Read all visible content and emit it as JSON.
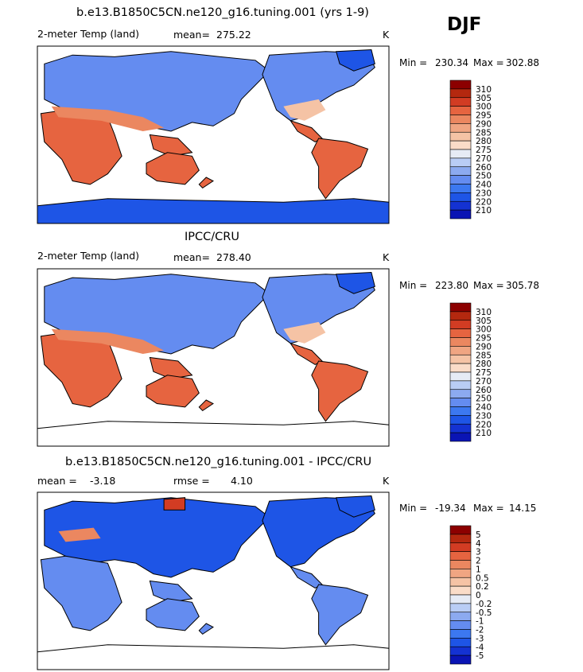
{
  "season": "DJF",
  "colors": {
    "abs": [
      "#00008c",
      "#0a14b4",
      "#1432d2",
      "#1e55e6",
      "#3c78f0",
      "#648cf0",
      "#8caaf0",
      "#b9cdf5",
      "#e6ebf5",
      "#fadcc8",
      "#f5c3a5",
      "#f0a582",
      "#eb8760",
      "#e66440",
      "#d23c23",
      "#b4280f",
      "#8c0000"
    ],
    "diff": [
      "#00008c",
      "#0a14b4",
      "#1432d2",
      "#1e55e6",
      "#3c78f0",
      "#648cf0",
      "#8caaf0",
      "#b9cdf5",
      "#e6ebf5",
      "#fadcc8",
      "#f5c3a5",
      "#f0a582",
      "#eb8760",
      "#e66440",
      "#d23c23",
      "#b4280f",
      "#8c0000"
    ]
  },
  "panels": [
    {
      "title": "b.e13.B1850C5CN.ne120_g16.tuning.001 (yrs 1-9)",
      "left_label": "2-meter Temp (land)",
      "stat_label": "mean=",
      "stat_value": "275.22",
      "units": "K",
      "min_label": "Min =",
      "min_value": "230.34",
      "max_label": "Max =",
      "max_value": "302.88",
      "levels": [
        "310",
        "305",
        "300",
        "295",
        "290",
        "285",
        "280",
        "275",
        "270",
        "260",
        "250",
        "240",
        "230",
        "220",
        "210"
      ]
    },
    {
      "title": "IPCC/CRU",
      "left_label": "2-meter Temp (land)",
      "stat_label": "mean=",
      "stat_value": "278.40",
      "units": "K",
      "min_label": "Min =",
      "min_value": "223.80",
      "max_label": "Max =",
      "max_value": "305.78",
      "levels": [
        "310",
        "305",
        "300",
        "295",
        "290",
        "285",
        "280",
        "275",
        "270",
        "260",
        "250",
        "240",
        "230",
        "220",
        "210"
      ]
    },
    {
      "title": "b.e13.B1850C5CN.ne120_g16.tuning.001 - IPCC/CRU",
      "left_label": "mean =",
      "left_value": "-3.18",
      "stat_label": "rmse =",
      "stat_value": "4.10",
      "units": "K",
      "min_label": "Min =",
      "min_value": "-19.34",
      "max_label": "Max =",
      "max_value": "14.15",
      "levels": [
        "5",
        "4",
        "3",
        "2",
        "1",
        "0.5",
        "0.2",
        "0",
        "-0.2",
        "-0.5",
        "-1",
        "-2",
        "-3",
        "-4",
        "-5"
      ]
    }
  ],
  "chart_data": [
    {
      "type": "heatmap",
      "title": "b.e13.B1850C5CN.ne120_g16.tuning.001 (yrs 1-9)",
      "variable": "2-meter Temp (land)",
      "units": "K",
      "mean": 275.22,
      "min": 230.34,
      "max": 302.88,
      "contour_levels": [
        210,
        220,
        230,
        240,
        250,
        260,
        270,
        275,
        280,
        285,
        290,
        295,
        300,
        305,
        310
      ],
      "xlabel": "",
      "ylabel": ""
    },
    {
      "type": "heatmap",
      "title": "IPCC/CRU",
      "variable": "2-meter Temp (land)",
      "units": "K",
      "mean": 278.4,
      "min": 223.8,
      "max": 305.78,
      "contour_levels": [
        210,
        220,
        230,
        240,
        250,
        260,
        270,
        275,
        280,
        285,
        290,
        295,
        300,
        305,
        310
      ],
      "xlabel": "",
      "ylabel": ""
    },
    {
      "type": "heatmap",
      "title": "b.e13.B1850C5CN.ne120_g16.tuning.001 - IPCC/CRU",
      "variable": "2-meter Temp (land)",
      "units": "K",
      "mean": -3.18,
      "rmse": 4.1,
      "min": -19.34,
      "max": 14.15,
      "contour_levels": [
        -5,
        -4,
        -3,
        -2,
        -1,
        -0.5,
        -0.2,
        0,
        0.2,
        0.5,
        1,
        2,
        3,
        4,
        5
      ],
      "xlabel": "",
      "ylabel": ""
    }
  ]
}
